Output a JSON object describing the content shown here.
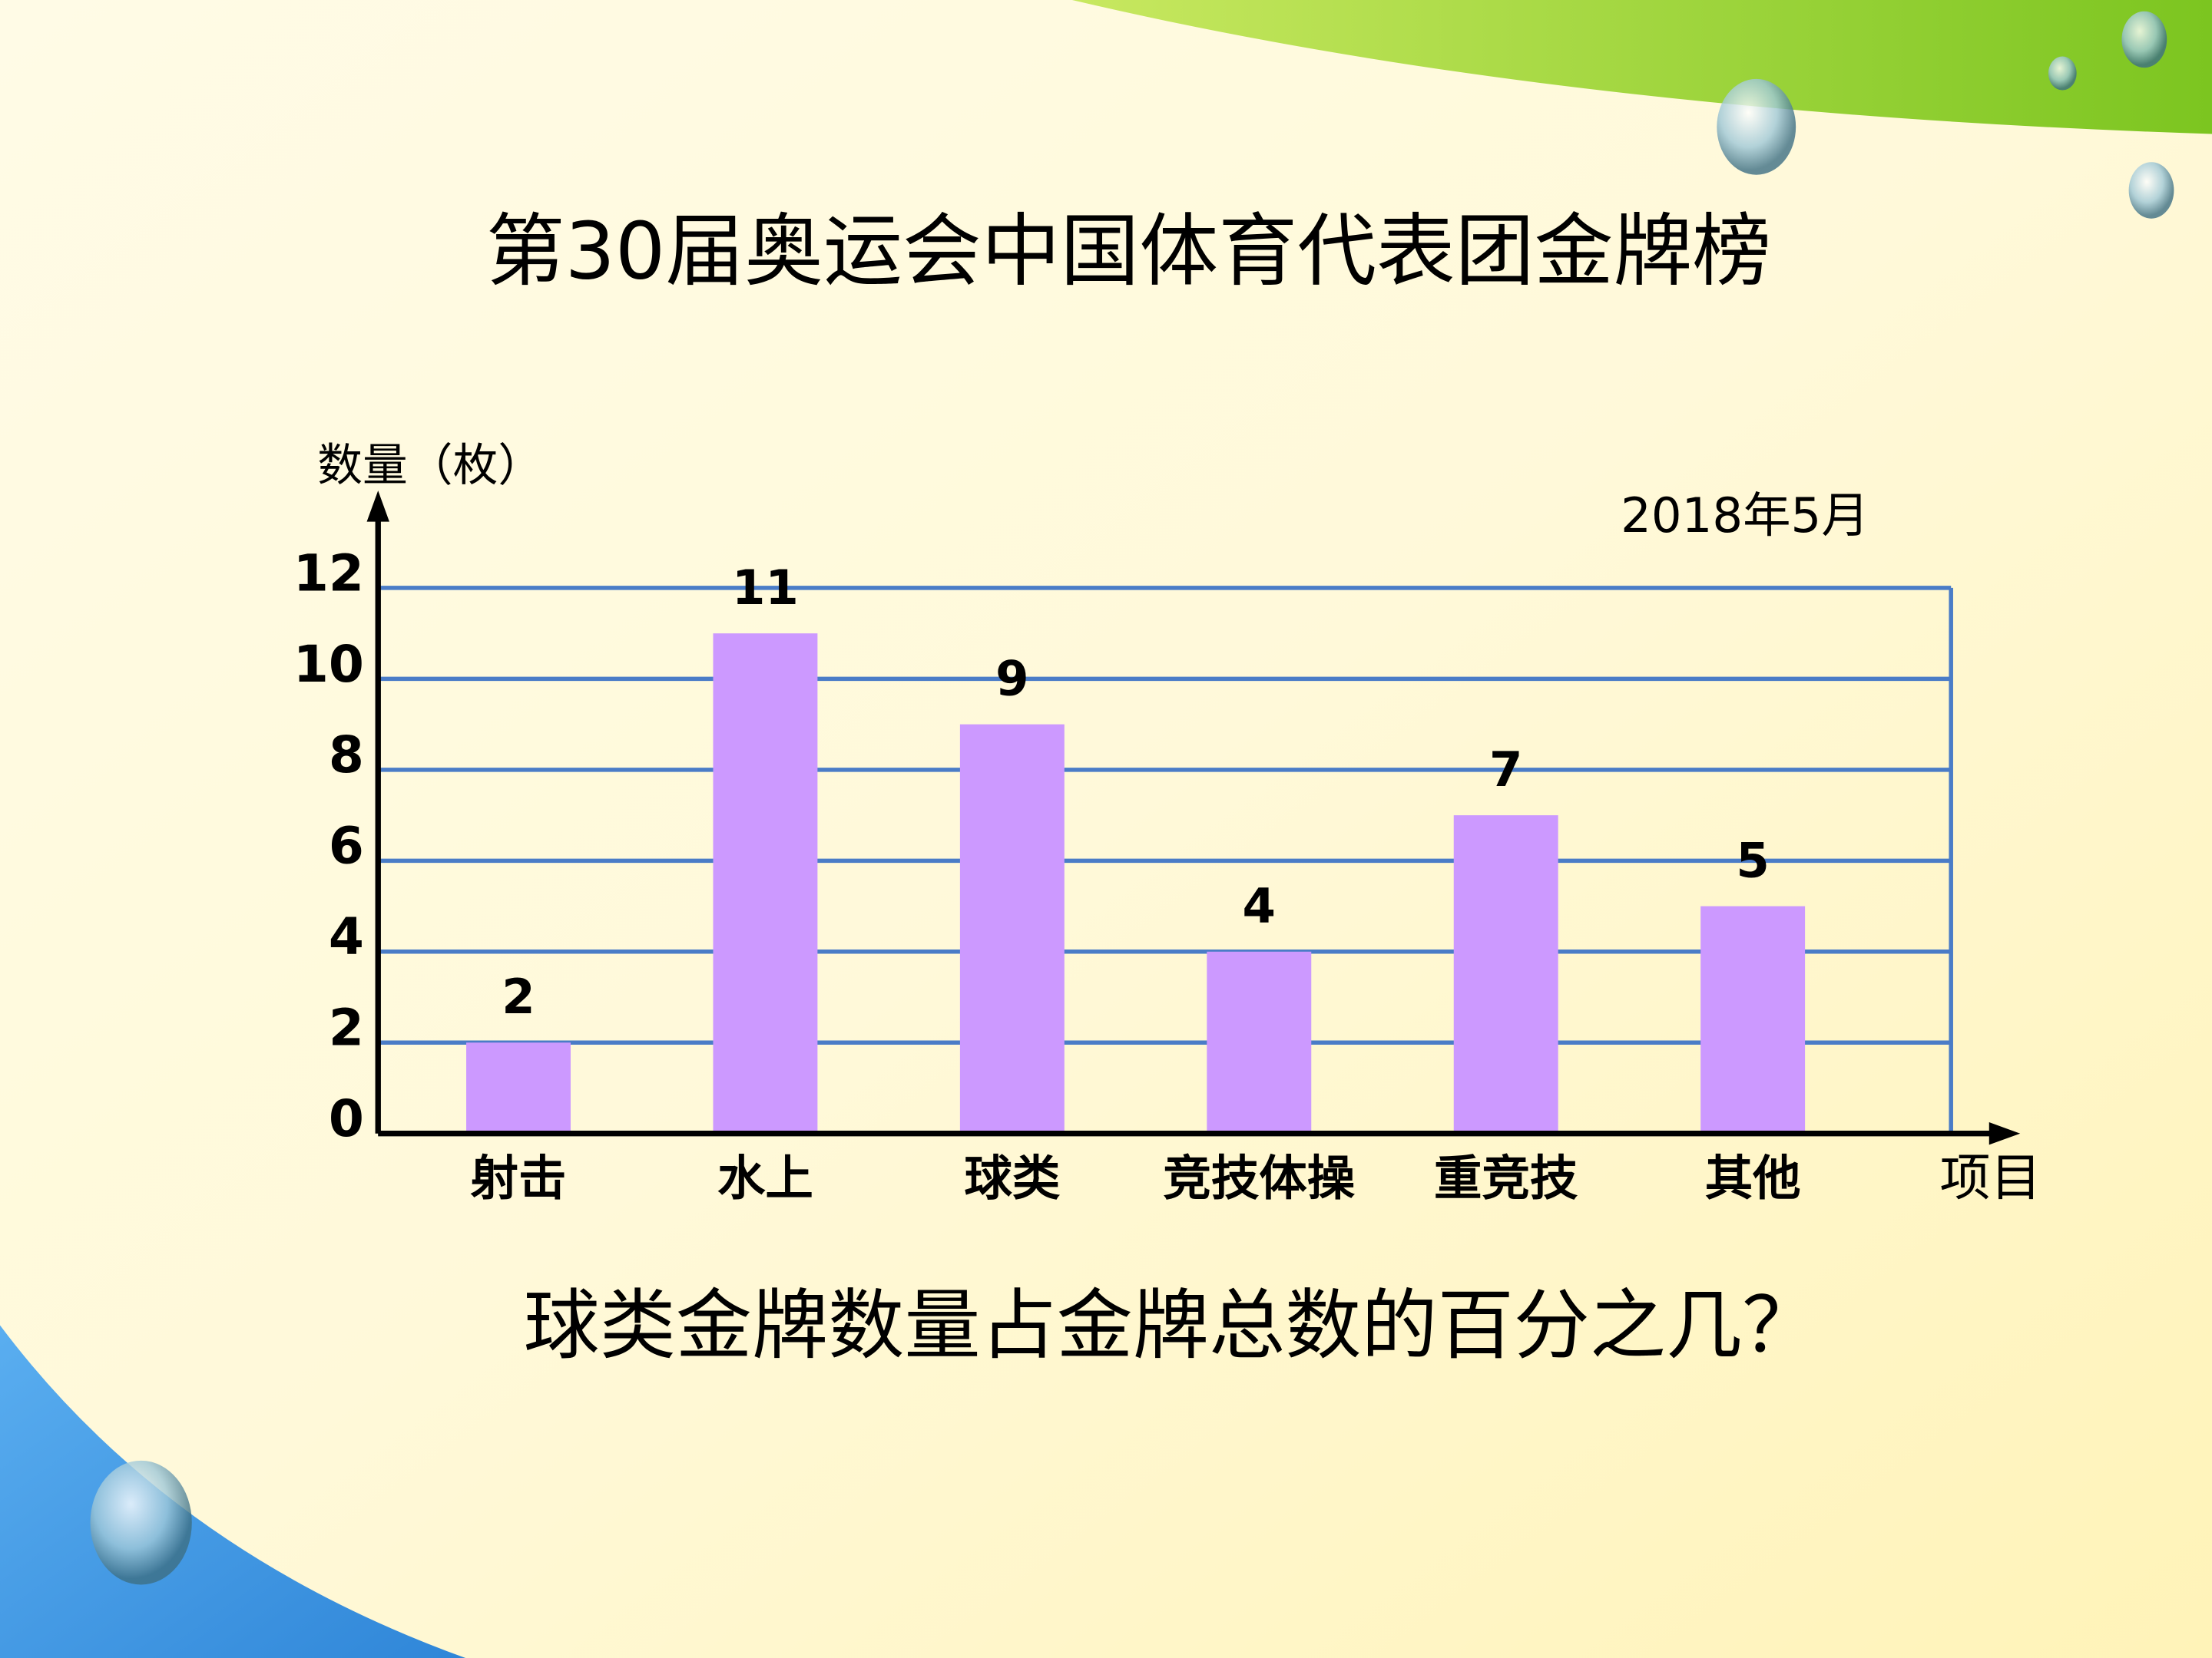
{
  "chart_data": {
    "type": "bar",
    "title": "第30届奥运会中国体育代表团金牌榜",
    "y_label": "数量（枚）",
    "x_label": "项目",
    "date": "2018年5月",
    "question": "球类金牌数量占金牌总数的百分之几？",
    "categories": [
      "射击",
      "水上",
      "球类",
      "竞技体操",
      "重竞技",
      "其他"
    ],
    "values": [
      2,
      11,
      9,
      4,
      7,
      5
    ],
    "color": "#cc99ff",
    "ylim": [
      0,
      12
    ],
    "yticks": [
      0,
      2,
      4,
      6,
      8,
      10,
      12
    ],
    "grid": true,
    "grid_color": "#4a7cc7"
  }
}
